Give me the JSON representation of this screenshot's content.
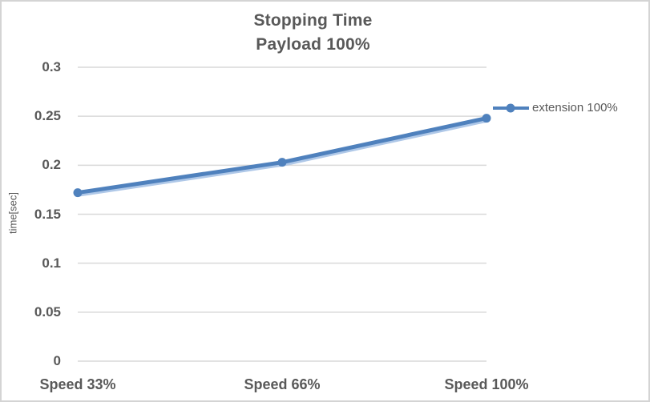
{
  "chart_data": {
    "type": "line",
    "title": "Stopping Time",
    "subtitle": "Payload 100%",
    "categories": [
      "Speed 33%",
      "Speed 66%",
      "Speed 100%"
    ],
    "series": [
      {
        "name": "extension 100%",
        "values": [
          0.172,
          0.203,
          0.248
        ]
      }
    ],
    "xlabel": "",
    "ylabel": "time[sec]",
    "ylim": [
      0,
      0.3
    ],
    "ytick_step": 0.05,
    "ytick_labels": [
      "0",
      "0.05",
      "0.1",
      "0.15",
      "0.2",
      "0.25",
      "0.3"
    ],
    "grid": "horizontal",
    "legend_position": "right"
  },
  "colors": {
    "series_line": "#4F81BD",
    "series_shadow": "#AFC8E8",
    "gridline": "#D9D9D9",
    "axis_text": "#595959",
    "title_text": "#595959",
    "legend_text": "#595959",
    "border": "#D4D4D4",
    "background": "#FFFFFF"
  }
}
